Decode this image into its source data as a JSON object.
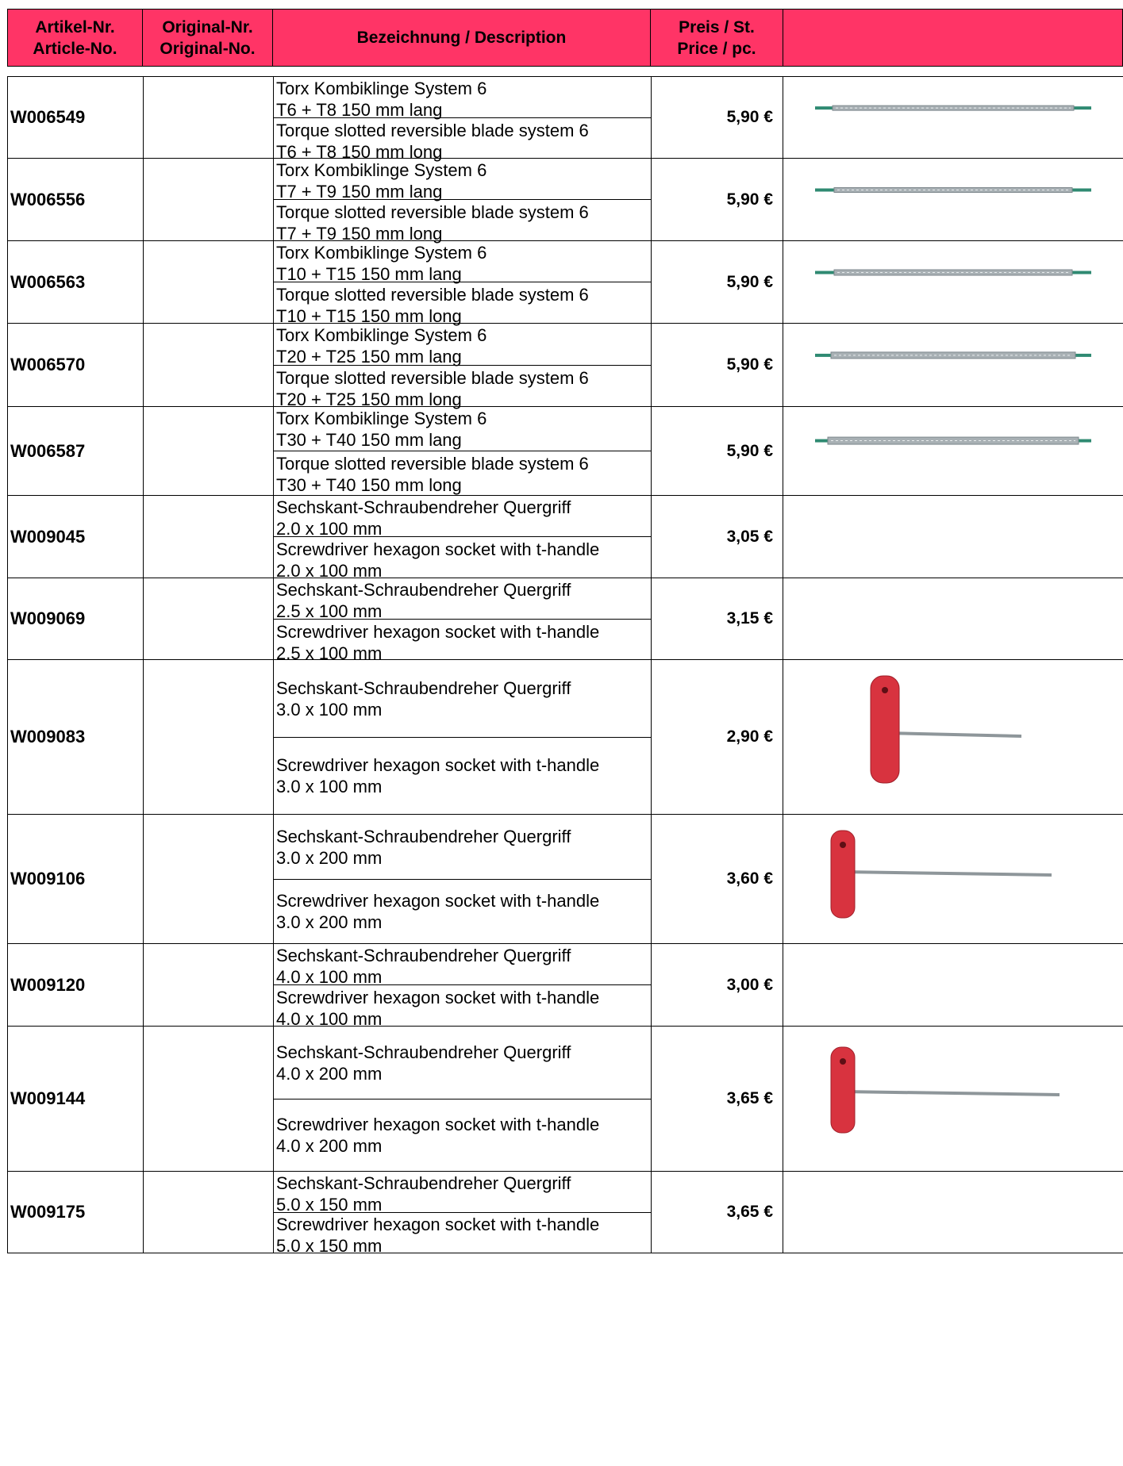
{
  "header": {
    "article_no": "Artikel-Nr.\nArticle-No.",
    "original_no": "Original-Nr.\nOriginal-No.",
    "description": "Bezeichnung / Description",
    "price": "Preis / St.\nPrice / pc.",
    "image": ""
  },
  "colors": {
    "header_bg": "#ff3466",
    "torx_tip": "#2f8a72",
    "handle": "#d8333f",
    "shaft": "#a8b0b4"
  },
  "rows": [
    {
      "article": "W006549",
      "original": "",
      "de1": "Torx Kombiklinge System 6",
      "de2": "T6 + T8 150 mm lang",
      "en1": "Torque slotted reversible blade system 6",
      "en2": "T6 + T8 150 mm long",
      "price": "5,90 €",
      "image": "torx-blade"
    },
    {
      "article": "W006556",
      "original": "",
      "de1": "Torx Kombiklinge System 6",
      "de2": "T7 + T9 150 mm lang",
      "en1": "Torque slotted reversible blade system 6",
      "en2": "T7 + T9 150 mm long",
      "price": "5,90 €",
      "image": "torx-blade"
    },
    {
      "article": "W006563",
      "original": "",
      "de1": "Torx Kombiklinge System 6",
      "de2": "T10 + T15 150 mm lang",
      "en1": "Torque slotted reversible blade system 6",
      "en2": "T10 + T15 150 mm long",
      "price": "5,90 €",
      "image": "torx-blade"
    },
    {
      "article": "W006570",
      "original": "",
      "de1": "Torx Kombiklinge System 6",
      "de2": "T20 + T25 150 mm lang",
      "en1": "Torque slotted reversible blade system 6",
      "en2": "T20 + T25 150 mm long",
      "price": "5,90 €",
      "image": "torx-blade"
    },
    {
      "article": "W006587",
      "original": "",
      "de1": "Torx Kombiklinge System 6",
      "de2": "T30 + T40 150 mm lang",
      "en1": "Torque slotted reversible blade system 6",
      "en2": "T30 +  T40 150 mm long",
      "price": "5,90 €",
      "image": "torx-blade"
    },
    {
      "article": "W009045",
      "original": "",
      "de1": "Sechskant-Schraubendreher Quergriff",
      "de2": "2.0 x 100 mm",
      "en1": "Screwdriver hexagon socket  with t-handle",
      "en2": "2.0 x 100 mm",
      "price": "3,05 €",
      "image": ""
    },
    {
      "article": "W009069",
      "original": "",
      "de1": "Sechskant-Schraubendreher Quergriff",
      "de2": "2.5 x 100 mm",
      "en1": "Screwdriver hexagon socket  with t-handle",
      "en2": "2.5 x 100 mm",
      "price": "3,15 €",
      "image": ""
    },
    {
      "article": "W009083",
      "original": "",
      "de1": "Sechskant-Schraubendreher Quergriff",
      "de2": "3.0 x 100 mm",
      "en1": "Screwdriver hexagon socket  with t-handle",
      "en2": "3.0 x 100 mm",
      "price": "2,90 €",
      "image": "t-handle-screwdriver"
    },
    {
      "article": "W009106",
      "original": "",
      "de1": "Sechskant-Schraubendreher Quergriff",
      "de2": "3.0 x 200 mm",
      "en1": "Screwdriver hexagon socket  with t-handle",
      "en2": "3.0 x 200 mm",
      "price": "3,60 €",
      "image": "t-handle-screwdriver"
    },
    {
      "article": "W009120",
      "original": "",
      "de1": "Sechskant-Schraubendreher Quergriff",
      "de2": "4.0 x 100 mm",
      "en1": "Screwdriver hexagon socket  with t-handle",
      "en2": "4.0 x 100 mm",
      "price": "3,00 €",
      "image": ""
    },
    {
      "article": "W009144",
      "original": "",
      "de1": "Sechskant-Schraubendreher Quergriff",
      "de2": "4.0 x 200 mm",
      "en1": "Screwdriver hexagon socket  with t-handle",
      "en2": "4.0 x 200 mm",
      "price": "3,65 €",
      "image": "t-handle-screwdriver"
    },
    {
      "article": "W009175",
      "original": "",
      "de1": "Sechskant-Schraubendreher Quergriff",
      "de2": "5.0 x 150 mm",
      "en1": "Screwdriver hexagon socket  with t-handle",
      "en2": "5.0 x 150 mm",
      "price": "3,65 €",
      "image": ""
    }
  ]
}
